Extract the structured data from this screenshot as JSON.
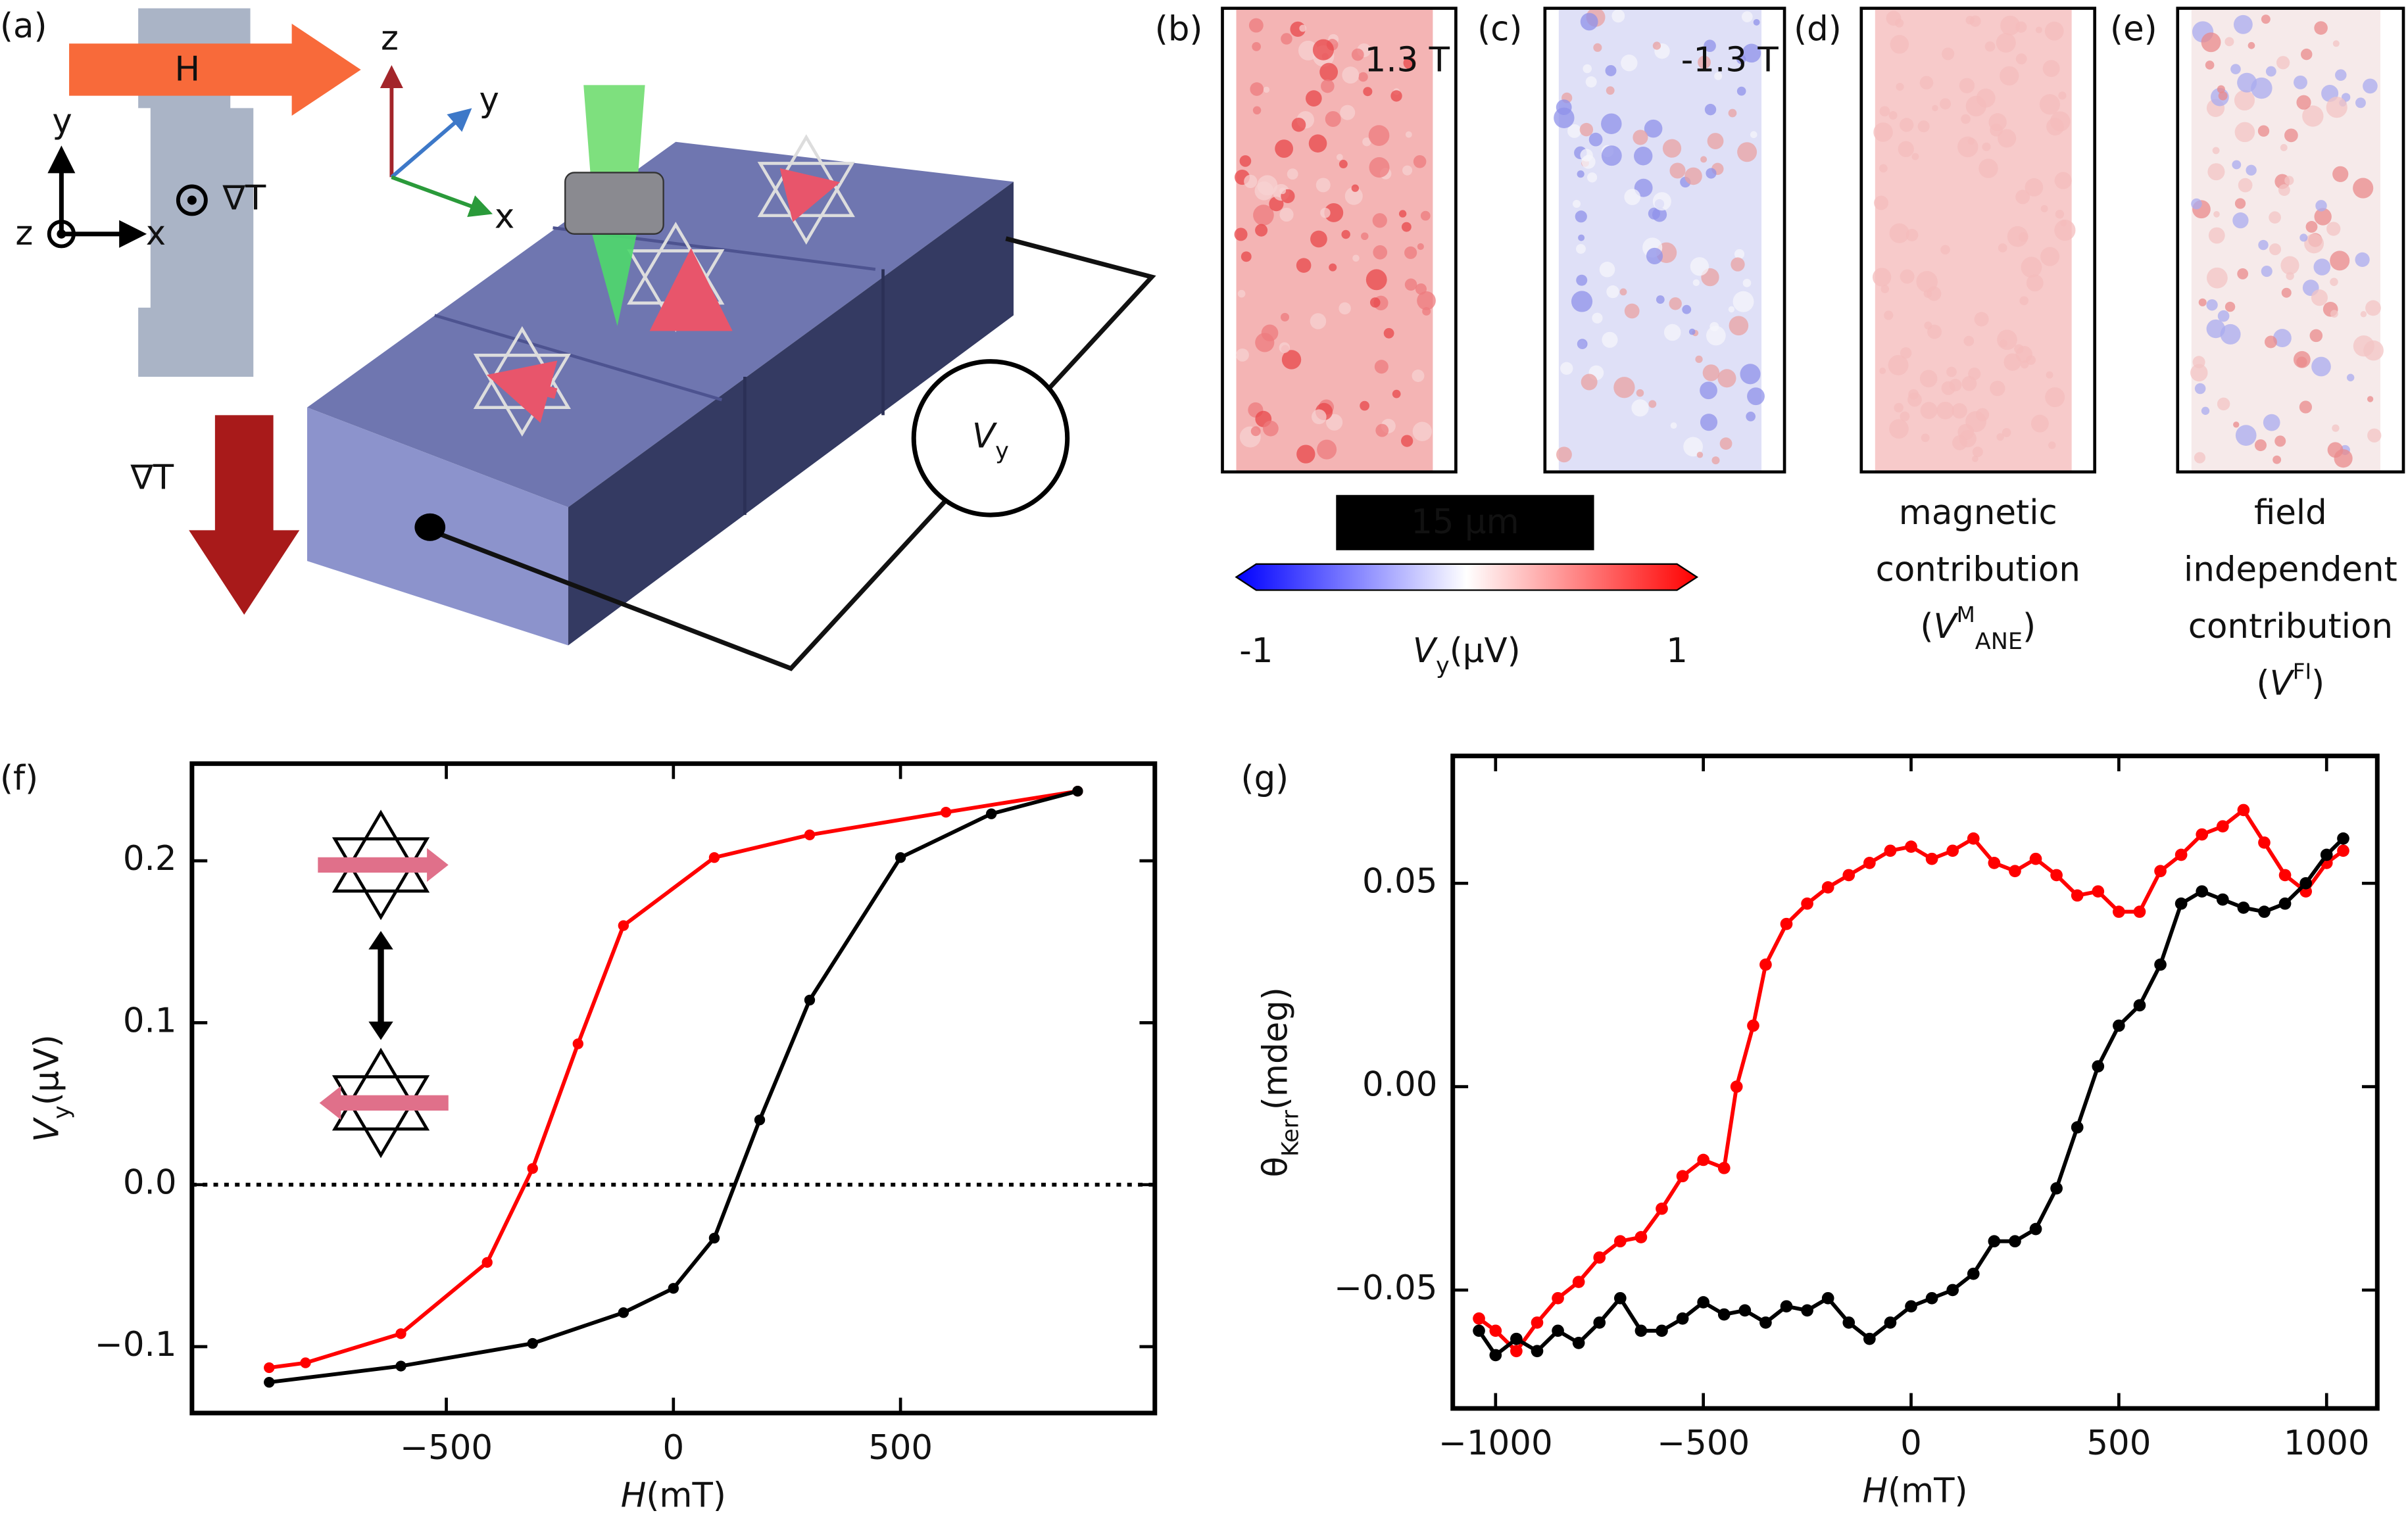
{
  "schematic": {
    "panel": "(a)",
    "field_label": "H",
    "gradient_label": "∇T",
    "inset_axes": [
      "x",
      "y",
      "z"
    ],
    "axes_3d": [
      "x",
      "y",
      "z"
    ],
    "voltage": "V",
    "voltage_sub": "y"
  },
  "maps": [
    {
      "panel": "(b)",
      "field": "1.3 T",
      "color": "#f4b4b4",
      "spots": [
        "#e8474a",
        "#f7d2d2",
        "#ee7b7d"
      ]
    },
    {
      "panel": "(c)",
      "field": "-1.3 T",
      "color": "#dfe0f7",
      "spots": [
        "#8f92ea",
        "#f6f6fb",
        "#e9a1a1"
      ]
    },
    {
      "panel": "(d)",
      "color": "#f7caca",
      "spots": [
        "#f4bcbc"
      ],
      "caption": [
        "magnetic",
        "contribution"
      ],
      "formula": {
        "open": "(",
        "symbol": "V",
        "sup": "M",
        "sub": "ANE",
        "close": ")"
      }
    },
    {
      "panel": "(e)",
      "color": "#f6eaea",
      "spots": [
        "#e9898b",
        "#a9abef",
        "#f3c4c4"
      ],
      "caption": [
        "field",
        "independent",
        "contribution"
      ],
      "formula": {
        "open": "(",
        "symbol": "V",
        "sup": "FI",
        "close": ")"
      }
    }
  ],
  "scale_bar": "15 μm",
  "colorbar": {
    "lim": [
      -1,
      1
    ],
    "ticks": [
      -1,
      1
    ],
    "label": "V",
    "label_sub": "y",
    "unit": "(μV)",
    "colors": [
      "#0000ff",
      "#ffffff",
      "#ff0000"
    ]
  },
  "chart_data": [
    {
      "type": "line",
      "panel": "(f)",
      "xlabel": "H",
      "xlabel_unit": "(mT)",
      "ylabel": "V",
      "ylabel_sub": "y",
      "ylabel_unit": "(μV)",
      "xlim": [
        -1060,
        1060
      ],
      "ylim": [
        -0.141,
        0.26
      ],
      "xticks": [
        {
          "value": -500,
          "label": "−500"
        },
        0,
        500
      ],
      "yticks": [
        {
          "value": -0.1,
          "label": "−0.1"
        },
        {
          "value": 0,
          "label": "0.0"
        },
        0.1,
        0.2
      ],
      "hline": 0,
      "series": [
        {
          "color": "#ff0000",
          "x": [
            -890,
            -810,
            -600,
            -410,
            -310,
            -210,
            -110,
            90,
            300,
            600,
            890
          ],
          "values": [
            -0.113,
            -0.11,
            -0.092,
            -0.048,
            0.01,
            0.087,
            0.16,
            0.202,
            0.216,
            0.23,
            0.243
          ]
        },
        {
          "color": "#000000",
          "x": [
            -890,
            -600,
            -310,
            -110,
            0,
            90,
            190,
            300,
            500,
            700,
            890
          ],
          "values": [
            -0.122,
            -0.112,
            -0.098,
            -0.079,
            -0.064,
            -0.033,
            0.04,
            0.114,
            0.202,
            0.229,
            0.243
          ]
        }
      ]
    },
    {
      "type": "line",
      "panel": "(g)",
      "xlabel": "H",
      "xlabel_unit": "(mT)",
      "ylabel": "θ",
      "ylabel_sub": "Kerr",
      "ylabel_unit": "(mdeg)",
      "xlim": [
        -1103,
        1122
      ],
      "ylim": [
        -0.0791,
        0.0813
      ],
      "xticks": [
        {
          "value": -1000,
          "label": "−1000"
        },
        {
          "value": -500,
          "label": "−500"
        },
        0,
        500,
        1000
      ],
      "yticks": [
        {
          "value": -0.05,
          "label": "−0.05"
        },
        {
          "value": 0,
          "label": "0.00"
        },
        0.05
      ],
      "series": [
        {
          "color": "#ff0000",
          "x": [
            -1040,
            -1000,
            -950,
            -900,
            -850,
            -800,
            -750,
            -700,
            -650,
            -600,
            -550,
            -500,
            -450,
            -420,
            -380,
            -350,
            -300,
            -250,
            -200,
            -150,
            -100,
            -50,
            0,
            50,
            100,
            150,
            200,
            250,
            300,
            350,
            400,
            450,
            500,
            550,
            600,
            650,
            700,
            750,
            800,
            850,
            900,
            950,
            1000,
            1040
          ],
          "values": [
            -0.057,
            -0.06,
            -0.065,
            -0.058,
            -0.052,
            -0.048,
            -0.042,
            -0.038,
            -0.037,
            -0.03,
            -0.022,
            -0.018,
            -0.02,
            0.0,
            0.015,
            0.03,
            0.04,
            0.045,
            0.049,
            0.052,
            0.055,
            0.058,
            0.059,
            0.056,
            0.058,
            0.061,
            0.055,
            0.053,
            0.056,
            0.052,
            0.047,
            0.048,
            0.043,
            0.043,
            0.053,
            0.057,
            0.062,
            0.064,
            0.068,
            0.06,
            0.052,
            0.048,
            0.055,
            0.058
          ]
        },
        {
          "color": "#000000",
          "x": [
            -1040,
            -1000,
            -950,
            -900,
            -850,
            -800,
            -750,
            -700,
            -650,
            -600,
            -550,
            -500,
            -450,
            -400,
            -350,
            -300,
            -250,
            -200,
            -150,
            -100,
            -50,
            0,
            50,
            100,
            150,
            200,
            250,
            300,
            350,
            400,
            450,
            500,
            550,
            600,
            650,
            700,
            750,
            800,
            850,
            900,
            950,
            1000,
            1040
          ],
          "values": [
            -0.06,
            -0.066,
            -0.062,
            -0.065,
            -0.06,
            -0.063,
            -0.058,
            -0.052,
            -0.06,
            -0.06,
            -0.057,
            -0.053,
            -0.056,
            -0.055,
            -0.058,
            -0.054,
            -0.055,
            -0.052,
            -0.058,
            -0.062,
            -0.058,
            -0.054,
            -0.052,
            -0.05,
            -0.046,
            -0.038,
            -0.038,
            -0.035,
            -0.025,
            -0.01,
            0.005,
            0.015,
            0.02,
            0.03,
            0.045,
            0.048,
            0.046,
            0.044,
            0.043,
            0.045,
            0.05,
            0.057,
            0.061
          ]
        }
      ]
    }
  ]
}
